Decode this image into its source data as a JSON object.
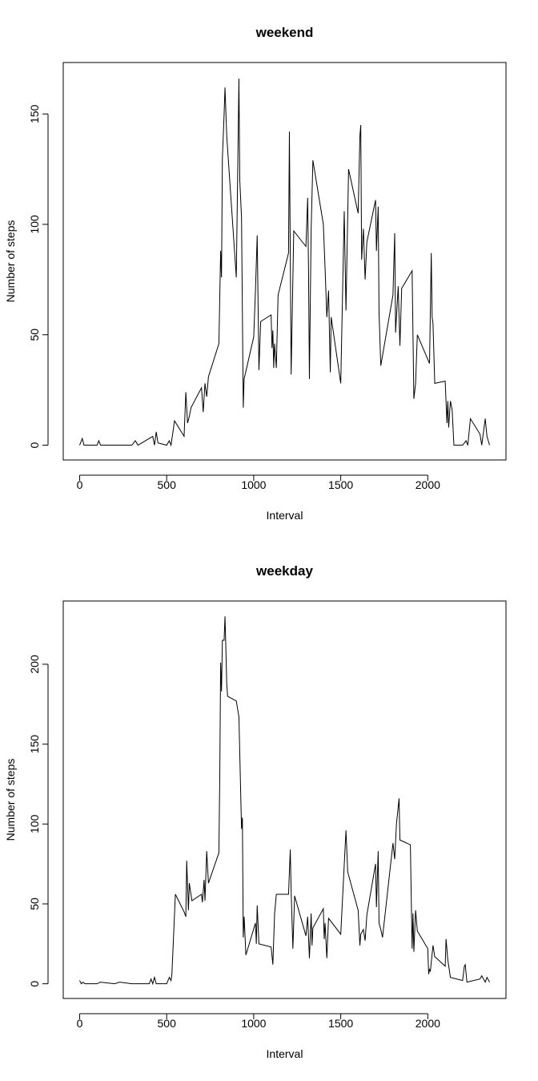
{
  "chart_data": [
    {
      "type": "line",
      "title": "weekend",
      "x_label": "Interval",
      "y_label": "Number of steps",
      "color": "#000000",
      "x": [
        0,
        15,
        25,
        100,
        110,
        120,
        200,
        300,
        320,
        335,
        420,
        430,
        440,
        450,
        500,
        515,
        525,
        545,
        600,
        610,
        620,
        630,
        640,
        700,
        710,
        720,
        730,
        740,
        800,
        810,
        815,
        820,
        830,
        835,
        845,
        900,
        915,
        920,
        930,
        940,
        945,
        1000,
        1010,
        1020,
        1030,
        1040,
        1100,
        1105,
        1110,
        1115,
        1120,
        1130,
        1140,
        1200,
        1205,
        1215,
        1230,
        1300,
        1310,
        1315,
        1320,
        1330,
        1340,
        1400,
        1410,
        1420,
        1430,
        1440,
        1445,
        1500,
        1520,
        1530,
        1545,
        1600,
        1610,
        1615,
        1620,
        1630,
        1640,
        1650,
        1700,
        1705,
        1715,
        1720,
        1730,
        1800,
        1810,
        1815,
        1830,
        1840,
        1850,
        1910,
        1920,
        1930,
        1940,
        2010,
        2020,
        2025,
        2030,
        2040,
        2100,
        2110,
        2115,
        2120,
        2130,
        2140,
        2150,
        2200,
        2220,
        2230,
        2245,
        2300,
        2310,
        2330,
        2340,
        2355
      ],
      "values": [
        0,
        3,
        0,
        0,
        2,
        0,
        0,
        0,
        2,
        0,
        4,
        0,
        6,
        1,
        0,
        2,
        0,
        11,
        4,
        24,
        10,
        13,
        17,
        26,
        15,
        28,
        22,
        31,
        46,
        88,
        76,
        130,
        150,
        162,
        140,
        76,
        166,
        120,
        103,
        17,
        30,
        49,
        70,
        95,
        34,
        56,
        59,
        44,
        52,
        35,
        46,
        35,
        68,
        87,
        142,
        32,
        97,
        90,
        112,
        78,
        30,
        98,
        129,
        100,
        80,
        58,
        70,
        33,
        58,
        28,
        106,
        61,
        125,
        105,
        140,
        145,
        84,
        98,
        75,
        92,
        111,
        88,
        108,
        60,
        36,
        68,
        96,
        51,
        72,
        45,
        71,
        79,
        21,
        28,
        50,
        37,
        87,
        58,
        55,
        28,
        29,
        10,
        20,
        8,
        20,
        16,
        0,
        0,
        2,
        0,
        12,
        5,
        0,
        12,
        4,
        0
      ],
      "xlim": [
        -94.2,
        2449.2
      ],
      "xticks": [
        0,
        500,
        1000,
        1500,
        2000
      ],
      "ylim": [
        -6.7,
        173.3
      ],
      "yticks": [
        0,
        50,
        100,
        150
      ]
    },
    {
      "type": "line",
      "title": "weekday",
      "x_label": "Interval",
      "y_label": "Number of steps",
      "color": "#000000",
      "x": [
        0,
        10,
        20,
        30,
        100,
        120,
        200,
        230,
        300,
        400,
        410,
        420,
        430,
        440,
        500,
        515,
        525,
        530,
        550,
        600,
        610,
        615,
        625,
        630,
        645,
        700,
        705,
        715,
        720,
        730,
        740,
        800,
        805,
        810,
        815,
        820,
        830,
        835,
        840,
        845,
        850,
        900,
        915,
        930,
        935,
        940,
        945,
        955,
        1010,
        1015,
        1020,
        1030,
        1100,
        1110,
        1120,
        1130,
        1200,
        1210,
        1215,
        1225,
        1235,
        1300,
        1310,
        1320,
        1330,
        1335,
        1340,
        1400,
        1405,
        1410,
        1420,
        1430,
        1500,
        1530,
        1540,
        1600,
        1610,
        1615,
        1630,
        1640,
        1650,
        1700,
        1705,
        1715,
        1720,
        1730,
        1740,
        1800,
        1810,
        1820,
        1835,
        1840,
        1900,
        1910,
        1915,
        1920,
        1930,
        1940,
        2000,
        2005,
        2010,
        2015,
        2030,
        2040,
        2100,
        2105,
        2115,
        2130,
        2200,
        2210,
        2215,
        2225,
        2300,
        2310,
        2330,
        2340,
        2355
      ],
      "values": [
        2,
        0,
        1,
        0,
        0,
        1,
        0,
        1,
        0,
        0,
        3,
        0,
        4,
        0,
        0,
        4,
        2,
        6,
        56,
        45,
        42,
        77,
        46,
        63,
        52,
        56,
        51,
        65,
        52,
        83,
        63,
        82,
        130,
        201,
        183,
        215,
        215,
        230,
        210,
        188,
        180,
        177,
        167,
        97,
        104,
        29,
        42,
        18,
        38,
        25,
        49,
        25,
        23,
        12,
        44,
        56,
        56,
        84,
        58,
        22,
        55,
        30,
        42,
        16,
        44,
        24,
        35,
        47,
        28,
        38,
        16,
        41,
        31,
        96,
        70,
        46,
        24,
        31,
        34,
        27,
        43,
        75,
        48,
        83,
        38,
        34,
        29,
        88,
        78,
        100,
        116,
        90,
        87,
        22,
        44,
        20,
        46,
        33,
        22,
        6,
        9,
        8,
        24,
        17,
        11,
        28,
        15,
        4,
        2,
        11,
        12,
        1,
        3,
        5,
        1,
        4,
        1
      ],
      "xlim": [
        -94.2,
        2449.2
      ],
      "xticks": [
        0,
        500,
        1000,
        1500,
        2000
      ],
      "ylim": [
        -9.2,
        239.6
      ],
      "yticks": [
        0,
        50,
        100,
        150,
        200
      ]
    }
  ]
}
